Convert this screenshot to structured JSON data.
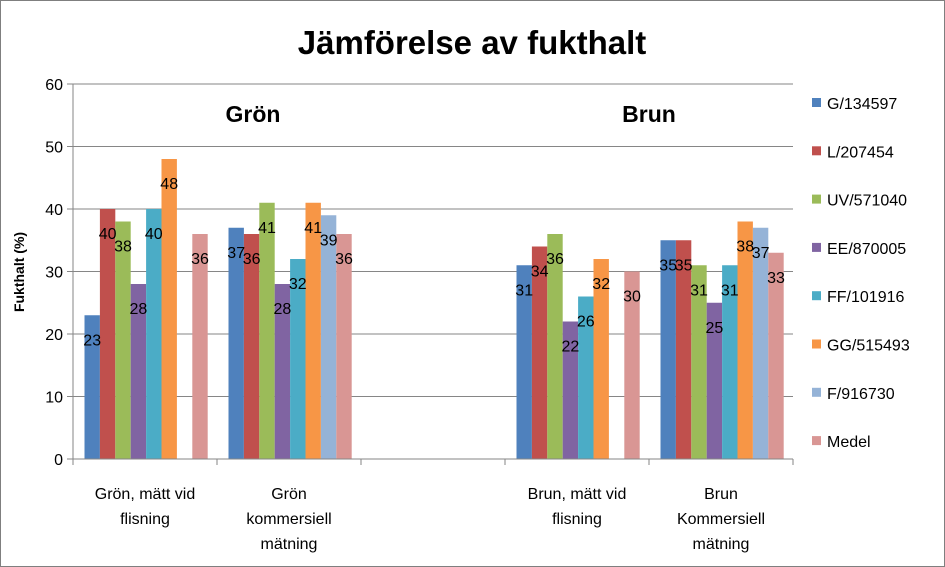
{
  "chart_data": {
    "type": "bar",
    "title": "Jämförelse av fukthalt",
    "ylabel": "Fukthalt (%)",
    "xlabel": "",
    "ylim": [
      0,
      60
    ],
    "yticks": [
      0,
      10,
      20,
      30,
      40,
      50,
      60
    ],
    "grid": true,
    "legend_position": "right",
    "categories": [
      [
        "Grön, mätt vid",
        "flisning"
      ],
      [
        "Grön",
        "kommersiell",
        "mätning"
      ],
      [
        ""
      ],
      [
        "Brun, mätt vid",
        "flisning"
      ],
      [
        "Brun",
        "Kommersiell",
        "mätning"
      ]
    ],
    "annotations": [
      {
        "text": "Grön",
        "category_index": 0.75
      },
      {
        "text": "Brun",
        "category_index": 3.5
      }
    ],
    "series": [
      {
        "name": "G/134597",
        "color": "#4f81bd",
        "values": [
          23,
          37,
          null,
          31,
          35
        ]
      },
      {
        "name": "L/207454",
        "color": "#c0504d",
        "values": [
          40,
          36,
          null,
          34,
          35
        ]
      },
      {
        "name": "UV/571040",
        "color": "#9bbb59",
        "values": [
          38,
          41,
          null,
          36,
          31
        ]
      },
      {
        "name": "EE/870005",
        "color": "#8064a2",
        "values": [
          28,
          28,
          null,
          22,
          25
        ]
      },
      {
        "name": "FF/101916",
        "color": "#4bacc6",
        "values": [
          40,
          32,
          null,
          26,
          31
        ]
      },
      {
        "name": "GG/515493",
        "color": "#f79646",
        "values": [
          48,
          41,
          null,
          32,
          38
        ]
      },
      {
        "name": "F/916730",
        "color": "#95b3d7",
        "values": [
          null,
          39,
          null,
          null,
          37
        ]
      },
      {
        "name": "Medel",
        "color": "#d99694",
        "values": [
          36,
          36,
          null,
          30,
          33
        ]
      }
    ]
  }
}
